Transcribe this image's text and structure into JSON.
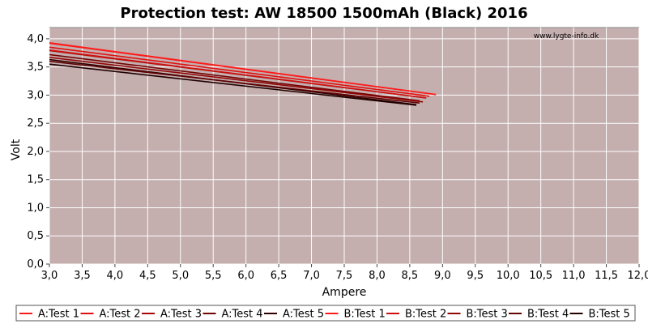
{
  "chart_data": {
    "type": "line",
    "title": "Protection test: AW 18500 1500mAh (Black) 2016",
    "xlabel": "Ampere",
    "ylabel": "Volt",
    "watermark": "www.lygte-info.dk",
    "xlim": [
      3.0,
      12.0
    ],
    "ylim": [
      0.0,
      4.2
    ],
    "xticks": [
      "3,0",
      "3,5",
      "4,0",
      "4,5",
      "5,0",
      "5,5",
      "6,0",
      "6,5",
      "7,0",
      "7,5",
      "8,0",
      "8,5",
      "9,0",
      "9,5",
      "10,0",
      "10,5",
      "11,0",
      "11,5",
      "12,0"
    ],
    "yticks": [
      "0,0",
      "0,5",
      "1,0",
      "1,5",
      "2,0",
      "2,5",
      "3,0",
      "3,5",
      "4,0"
    ],
    "grid": true,
    "legend_position": "bottom",
    "plot_background": "#c4aeae",
    "series": [
      {
        "name": "A:Test 1",
        "color": "#ff1a1a",
        "x": [
          3.0,
          8.9
        ],
        "y": [
          3.92,
          3.01
        ]
      },
      {
        "name": "A:Test 2",
        "color": "#e01010",
        "x": [
          3.0,
          8.8
        ],
        "y": [
          3.85,
          2.98
        ]
      },
      {
        "name": "A:Test 3",
        "color": "#a80808",
        "x": [
          3.0,
          8.75
        ],
        "y": [
          3.79,
          2.95
        ]
      },
      {
        "name": "A:Test 4",
        "color": "#700404",
        "x": [
          3.0,
          8.65
        ],
        "y": [
          3.72,
          2.9
        ]
      },
      {
        "name": "A:Test 5",
        "color": "#300000",
        "x": [
          3.0,
          8.6
        ],
        "y": [
          3.63,
          2.83
        ]
      },
      {
        "name": "B:Test 1",
        "color": "#ff1a1a",
        "x": [
          3.0,
          8.9
        ],
        "y": [
          3.93,
          3.01
        ]
      },
      {
        "name": "B:Test 2",
        "color": "#d01010",
        "x": [
          3.0,
          8.75
        ],
        "y": [
          3.8,
          2.95
        ]
      },
      {
        "name": "B:Test 3",
        "color": "#900606",
        "x": [
          3.0,
          8.7
        ],
        "y": [
          3.67,
          2.88
        ]
      },
      {
        "name": "B:Test 4",
        "color": "#600303",
        "x": [
          3.0,
          8.65
        ],
        "y": [
          3.6,
          2.86
        ]
      },
      {
        "name": "B:Test 5",
        "color": "#200000",
        "x": [
          3.0,
          8.6
        ],
        "y": [
          3.55,
          2.82
        ]
      }
    ]
  }
}
